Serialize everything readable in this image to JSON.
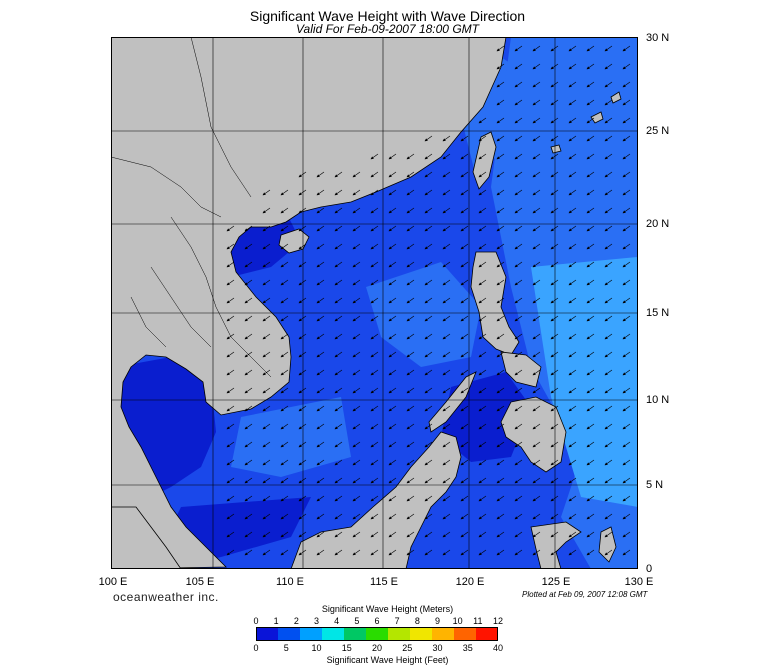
{
  "header": {
    "title": "Significant Wave Height with Wave Direction",
    "subtitle": "Valid For Feb-09-2007 18:00 GMT"
  },
  "axes": {
    "lon_labels": [
      "100 E",
      "105 E",
      "110 E",
      "115 E",
      "120 E",
      "125 E",
      "130 E"
    ],
    "lat_labels": [
      "30 N",
      "25 N",
      "20 N",
      "15 N",
      "10 N",
      "5 N",
      "0"
    ]
  },
  "footer": {
    "brand": "oceanweather inc.",
    "plotted": "Plotted at Feb 09, 2007 12:08 GMT"
  },
  "legend": {
    "meters_title": "Significant Wave Height (Meters)",
    "meters_ticks": [
      "0",
      "1",
      "2",
      "3",
      "4",
      "5",
      "6",
      "7",
      "8",
      "9",
      "10",
      "11",
      "12"
    ],
    "feet_title": "Significant Wave Height (Feet)",
    "feet_ticks": [
      "0",
      "5",
      "10",
      "15",
      "20",
      "25",
      "30",
      "35",
      "40"
    ],
    "colors": [
      "#0a14d8",
      "#0050f0",
      "#00a0ff",
      "#00e6e6",
      "#00c864",
      "#2adc00",
      "#b4e600",
      "#f0e600",
      "#ffb400",
      "#ff6400",
      "#ff1400"
    ]
  },
  "map": {
    "land_color": "#c0c0c0",
    "sea_colors": [
      "#0a1ecf",
      "#1a48ea",
      "#2a6ff4",
      "#3aa4ff",
      "#0d0d60"
    ]
  }
}
